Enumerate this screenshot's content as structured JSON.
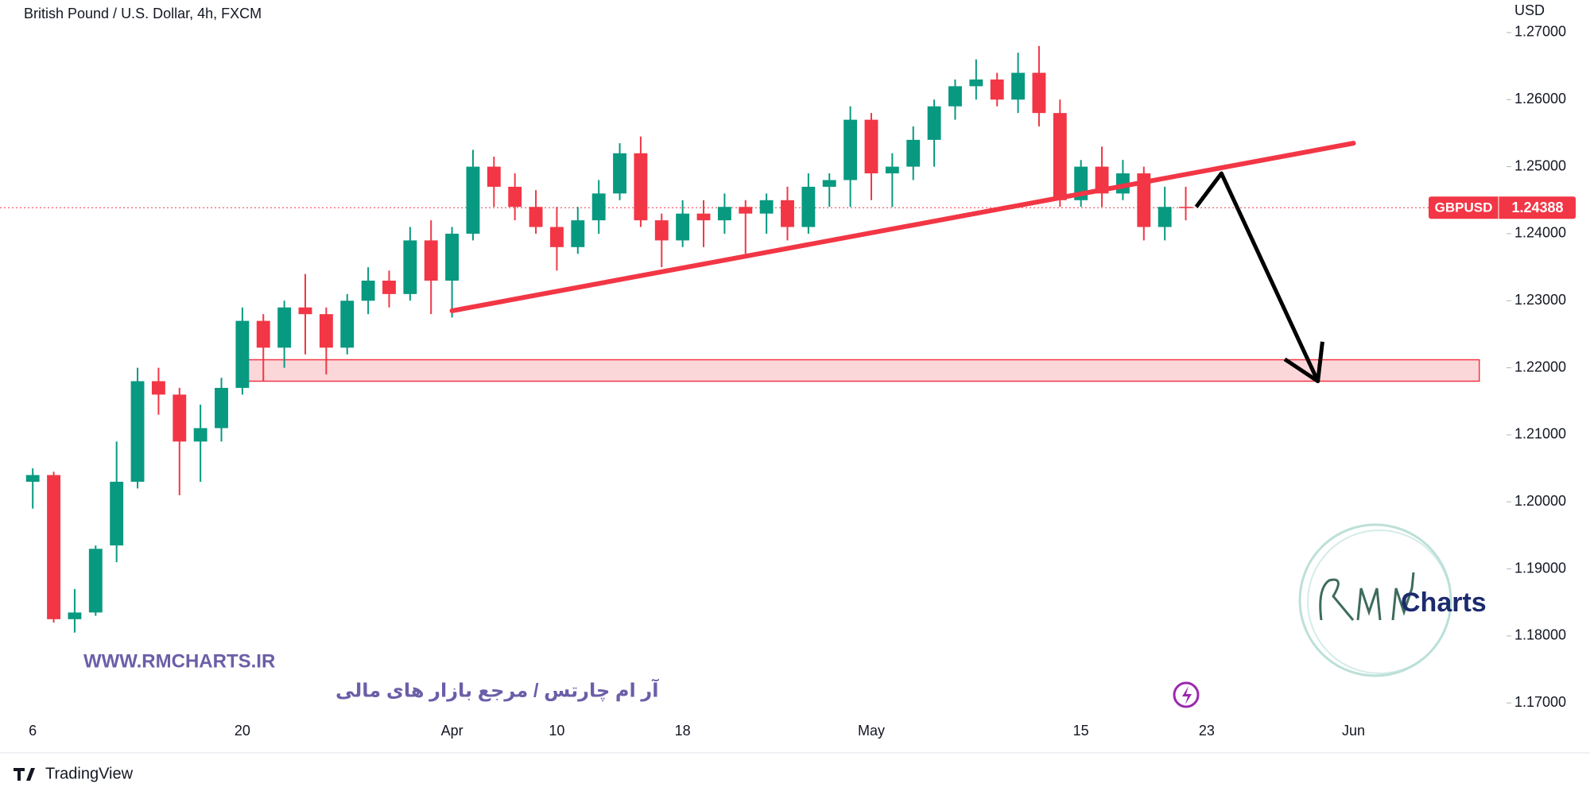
{
  "chart_data": {
    "type": "candlestick",
    "title": "British Pound / U.S. Dollar, 4h, FXCM",
    "y_unit": "USD",
    "symbol": "GBPUSD",
    "last_price": 1.24388,
    "categories": [
      "6",
      null,
      null,
      null,
      null,
      null,
      null,
      null,
      null,
      null,
      "20",
      null,
      null,
      null,
      null,
      null,
      null,
      null,
      null,
      null,
      "Apr",
      null,
      null,
      null,
      null,
      "10",
      null,
      null,
      null,
      null,
      null,
      "18",
      null,
      null,
      null,
      null,
      null,
      null,
      null,
      null,
      "May",
      null,
      null,
      null,
      null,
      null,
      null,
      null,
      null,
      null,
      "15",
      null,
      null,
      null,
      null,
      null,
      "23",
      null,
      null,
      null,
      null,
      null,
      null,
      "Jun",
      null,
      null,
      null,
      null,
      null,
      null
    ],
    "open": [
      1.203,
      1.204,
      1.1825,
      1.1835,
      1.1935,
      1.203,
      1.218,
      1.216,
      1.209,
      1.211,
      1.217,
      1.227,
      1.223,
      1.229,
      1.228,
      1.223,
      1.23,
      1.233,
      1.231,
      1.239,
      1.233,
      1.24,
      1.25,
      1.247,
      1.244,
      1.241,
      1.238,
      1.242,
      1.246,
      1.252,
      1.242,
      1.239,
      1.243,
      1.242,
      1.244,
      1.243,
      1.245,
      1.241,
      1.247,
      1.248,
      1.257,
      1.249,
      1.25,
      1.254,
      1.259,
      1.262,
      1.263,
      1.26,
      1.264,
      1.258,
      1.245,
      1.25,
      1.246,
      1.249,
      1.241,
      1.244,
      null,
      null,
      null,
      null,
      null,
      null,
      null,
      null,
      null,
      null,
      null,
      null,
      null,
      null
    ],
    "high": [
      1.205,
      1.2045,
      1.187,
      1.1935,
      1.209,
      1.22,
      1.22,
      1.217,
      1.2145,
      1.2185,
      1.229,
      1.228,
      1.23,
      1.234,
      1.229,
      1.231,
      1.235,
      1.2345,
      1.241,
      1.242,
      1.241,
      1.2525,
      1.2515,
      1.249,
      1.2465,
      1.244,
      1.244,
      1.248,
      1.2535,
      1.2545,
      1.243,
      1.245,
      1.245,
      1.246,
      1.245,
      1.246,
      1.247,
      1.249,
      1.249,
      1.259,
      1.258,
      1.252,
      1.256,
      1.26,
      1.263,
      1.266,
      1.264,
      1.267,
      1.268,
      1.26,
      1.251,
      1.253,
      1.251,
      1.25,
      1.247,
      1.247,
      null,
      null,
      null,
      null,
      null,
      null,
      null,
      null,
      null,
      null,
      null,
      null,
      null,
      null
    ],
    "low": [
      1.199,
      1.182,
      1.1805,
      1.183,
      1.191,
      1.202,
      1.213,
      1.201,
      1.203,
      1.209,
      1.216,
      1.218,
      1.22,
      1.222,
      1.219,
      1.222,
      1.228,
      1.229,
      1.23,
      1.228,
      1.2275,
      1.239,
      1.244,
      1.242,
      1.24,
      1.2345,
      1.237,
      1.24,
      1.245,
      1.241,
      1.235,
      1.238,
      1.238,
      1.24,
      1.237,
      1.24,
      1.239,
      1.24,
      1.244,
      1.244,
      1.245,
      1.244,
      1.248,
      1.25,
      1.257,
      1.26,
      1.259,
      1.258,
      1.256,
      1.244,
      1.244,
      1.244,
      1.245,
      1.239,
      1.239,
      1.242,
      null,
      null,
      null,
      null,
      null,
      null,
      null,
      null,
      null,
      null,
      null,
      null,
      null,
      null
    ],
    "close": [
      1.204,
      1.1825,
      1.1835,
      1.193,
      1.203,
      1.218,
      1.216,
      1.209,
      1.211,
      1.217,
      1.227,
      1.223,
      1.229,
      1.228,
      1.223,
      1.23,
      1.233,
      1.231,
      1.239,
      1.233,
      1.24,
      1.25,
      1.247,
      1.244,
      1.241,
      1.238,
      1.242,
      1.246,
      1.252,
      1.242,
      1.239,
      1.243,
      1.242,
      1.244,
      1.243,
      1.245,
      1.241,
      1.247,
      1.248,
      1.257,
      1.249,
      1.25,
      1.254,
      1.259,
      1.262,
      1.263,
      1.26,
      1.264,
      1.258,
      1.245,
      1.25,
      1.246,
      1.249,
      1.241,
      1.244,
      1.2439,
      null,
      null,
      null,
      null,
      null,
      null,
      null,
      null,
      null,
      null,
      null,
      null,
      null,
      null
    ],
    "up_color": "#089981",
    "down_color": "#f23645",
    "ylim": [
      1.16256,
      1.27486
    ],
    "yticks": [
      {
        "value": 1.17,
        "label": "1.17000"
      },
      {
        "value": 1.18,
        "label": "1.18000"
      },
      {
        "value": 1.19,
        "label": "1.19000"
      },
      {
        "value": 1.2,
        "label": "1.20000"
      },
      {
        "value": 1.21,
        "label": "1.21000"
      },
      {
        "value": 1.22,
        "label": "1.22000"
      },
      {
        "value": 1.23,
        "label": "1.23000"
      },
      {
        "value": 1.24,
        "label": "1.24000"
      },
      {
        "value": 1.25,
        "label": "1.25000"
      },
      {
        "value": 1.26,
        "label": "1.26000"
      },
      {
        "value": 1.27,
        "label": "1.27000"
      }
    ],
    "trendline": {
      "x": [
        20,
        63
      ],
      "y": [
        1.2285,
        1.2535
      ],
      "color": "#f23645"
    },
    "target_zone": {
      "x": [
        10,
        69
      ],
      "y": [
        1.218,
        1.2212
      ],
      "color": "#f23645"
    },
    "arrow": {
      "x": [
        55.5,
        56.7,
        61.3
      ],
      "y": [
        1.244,
        1.249,
        1.218
      ],
      "color": "#000000"
    },
    "watermark": {
      "site": "WWW.RMCHARTS.IR",
      "tagline": "آر ام چارتس / مرجع بازار های مالی",
      "logo": "Charts"
    },
    "footer": "TradingView"
  }
}
